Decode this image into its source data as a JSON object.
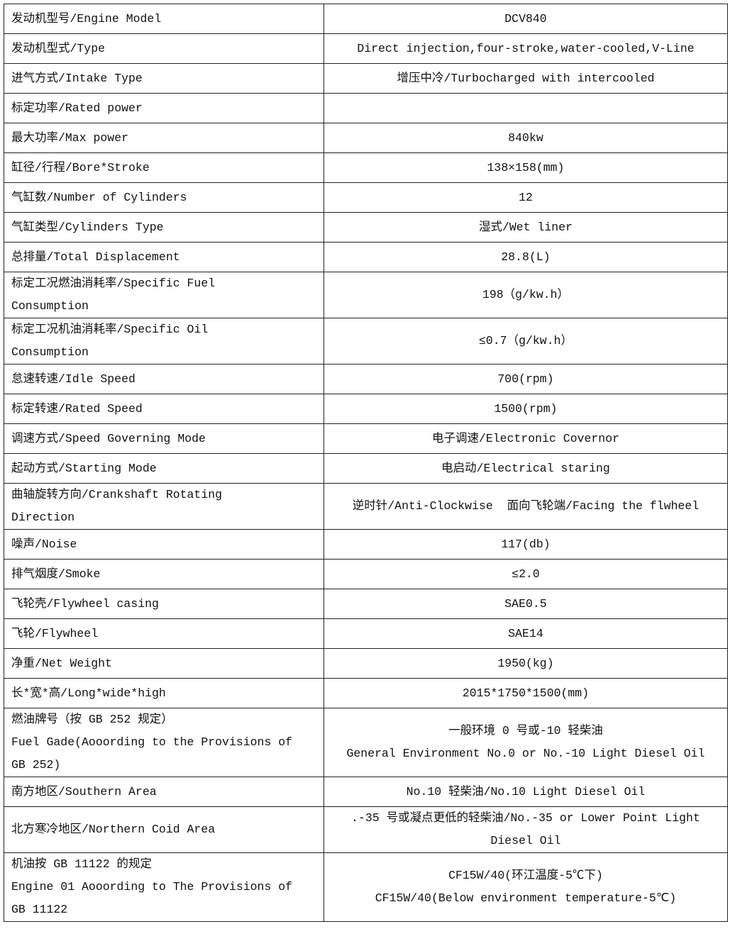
{
  "table": {
    "rows": [
      {
        "label": [
          "发动机型号/Engine Model"
        ],
        "value": [
          "DCV840"
        ]
      },
      {
        "label": [
          "发动机型式/Type"
        ],
        "value": [
          "Direct injection,four-stroke,water-cooled,V-Line"
        ]
      },
      {
        "label": [
          "进气方式/Intake Type"
        ],
        "value": [
          "增压中冷/Turbocharged with intercooled"
        ]
      },
      {
        "label": [
          "标定功率/Rated power"
        ],
        "value": [
          ""
        ]
      },
      {
        "label": [
          "最大功率/Max power"
        ],
        "value": [
          "840kw"
        ]
      },
      {
        "label": [
          "缸径/行程/Bore*Stroke"
        ],
        "value": [
          "138×158(mm)"
        ]
      },
      {
        "label": [
          "气缸数/Number of Cylinders"
        ],
        "value": [
          "12"
        ]
      },
      {
        "label": [
          "气缸类型/Cylinders Type"
        ],
        "value": [
          "湿式/Wet liner"
        ]
      },
      {
        "label": [
          "总排量/Total Displacement"
        ],
        "value": [
          "28.8(L)"
        ]
      },
      {
        "label": [
          "标定工况燃油消耗率/Specific Fuel",
          "Consumption"
        ],
        "value": [
          "198（g/kw.h）"
        ]
      },
      {
        "label": [
          "标定工况机油消耗率/Specific Oil",
          "Consumption"
        ],
        "value": [
          "≤0.7（g/kw.h）"
        ]
      },
      {
        "label": [
          "怠速转速/Idle Speed"
        ],
        "value": [
          "700(rpm)"
        ]
      },
      {
        "label": [
          "标定转速/Rated Speed"
        ],
        "value": [
          "1500(rpm)"
        ]
      },
      {
        "label": [
          "调速方式/Speed Governing Mode"
        ],
        "value": [
          "电子调速/Electronic Covernor"
        ]
      },
      {
        "label": [
          "起动方式/Starting Mode"
        ],
        "value": [
          "电启动/Electrical staring"
        ]
      },
      {
        "label": [
          "曲轴旋转方向/Crankshaft Rotating",
          "Direction"
        ],
        "value": [
          "逆时针/Anti-Clockwise  面向飞轮端/Facing the flwheel"
        ]
      },
      {
        "label": [
          "噪声/Noise"
        ],
        "value": [
          "117(db)"
        ]
      },
      {
        "label": [
          "排气烟度/Smoke"
        ],
        "value": [
          "≤2.0"
        ]
      },
      {
        "label": [
          "飞轮壳/Flywheel casing"
        ],
        "value": [
          "SAE0.5"
        ]
      },
      {
        "label": [
          "飞轮/Flywheel"
        ],
        "value": [
          "SAE14"
        ]
      },
      {
        "label": [
          "净重/Net Weight"
        ],
        "value": [
          "1950(kg)"
        ]
      },
      {
        "label": [
          "长*宽*高/Long*wide*high"
        ],
        "value": [
          "2015*1750*1500(mm)"
        ]
      },
      {
        "label": [
          "燃油牌号（按 GB 252 规定）",
          "Fuel Gade(Aooording to the Provisions of",
          "GB 252)"
        ],
        "value": [
          "一般环境 0 号或-10 轻柴油",
          "General Environment No.0 or No.-10 Light Diesel Oil"
        ]
      },
      {
        "label": [
          "南方地区/Southern Area"
        ],
        "value": [
          "No.10 轻柴油/No.10 Light Diesel Oil"
        ]
      },
      {
        "label": [
          "北方寒冷地区/Northern Coid Area"
        ],
        "value": [
          ".-35 号或凝点更低的轻柴油/No.-35 or Lower Point Light",
          "Diesel Oil"
        ]
      },
      {
        "label": [
          "机油按 GB 11122 的规定",
          "Engine 01 Aooording to The Provisions of",
          "GB 11122"
        ],
        "value": [
          "CF15W/40(环江温度-5℃下)",
          "CF15W/40(Below environment temperature-5℃)"
        ]
      }
    ]
  }
}
